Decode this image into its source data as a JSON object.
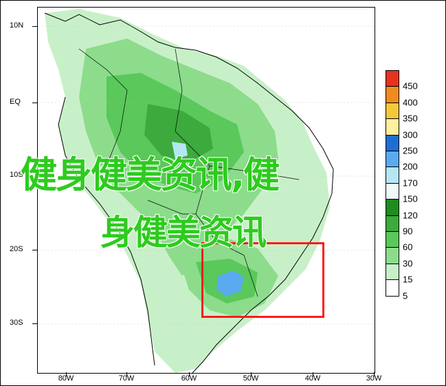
{
  "map": {
    "lat_labels": [
      "10N",
      "EQ",
      "10S",
      "20S",
      "30S"
    ],
    "lon_labels": [
      "80W",
      "70W",
      "60W",
      "50W",
      "40W",
      "30W"
    ]
  },
  "legend": {
    "labels": [
      "450",
      "400",
      "350",
      "300",
      "250",
      "200",
      "170",
      "150",
      "120",
      "90",
      "60",
      "30",
      "15",
      "5"
    ],
    "colors": [
      "#e8321e",
      "#f08c1e",
      "#f5c83c",
      "#fff0a0",
      "#1e6ed2",
      "#5aaaf0",
      "#b4e6f5",
      "#f0fafa",
      "#1e8c1e",
      "#3caa3c",
      "#5ac85a",
      "#8cdc8c",
      "#c8f0c8",
      "#ffffff"
    ]
  },
  "overlay": {
    "watermark_line1": "健身健美资讯,健",
    "watermark_line2": "身健美资讯",
    "highlight_color": "#ff1a1a"
  }
}
